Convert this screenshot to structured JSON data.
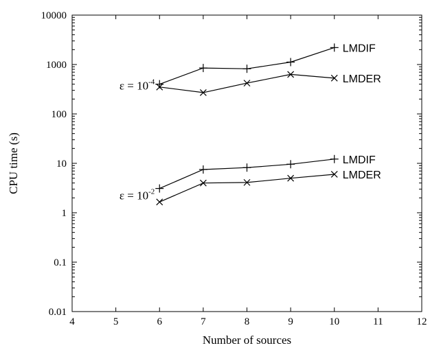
{
  "chart_data": {
    "type": "line",
    "xlabel": "Number of sources",
    "ylabel": "CPU time (s)",
    "xlim": [
      4,
      12
    ],
    "ylim": [
      0.01,
      10000
    ],
    "yscale": "log",
    "xticks": [
      "4",
      "5",
      "6",
      "7",
      "8",
      "9",
      "10",
      "11",
      "12"
    ],
    "yticks": [
      "0.01",
      "0.1",
      "1",
      "10",
      "100",
      "1000",
      "10000"
    ],
    "grid": false,
    "x": [
      6,
      7,
      8,
      9,
      10
    ],
    "groups": [
      {
        "annotation": {
          "base": "ε = 10",
          "exponent": "-4"
        },
        "series": [
          {
            "name": "LMDIF",
            "marker": "plus",
            "values": [
              400,
              850,
              820,
              1120,
              2200
            ]
          },
          {
            "name": "LMDER",
            "marker": "cross",
            "values": [
              350,
              270,
              420,
              630,
              530
            ]
          }
        ]
      },
      {
        "annotation": {
          "base": "ε = 10",
          "exponent": "-2"
        },
        "series": [
          {
            "name": "LMDIF",
            "marker": "plus",
            "values": [
              3.1,
              7.5,
              8.2,
              9.6,
              12.2
            ]
          },
          {
            "name": "LMDER",
            "marker": "cross",
            "values": [
              1.65,
              4.0,
              4.1,
              5.0,
              6.0
            ]
          }
        ]
      }
    ]
  }
}
